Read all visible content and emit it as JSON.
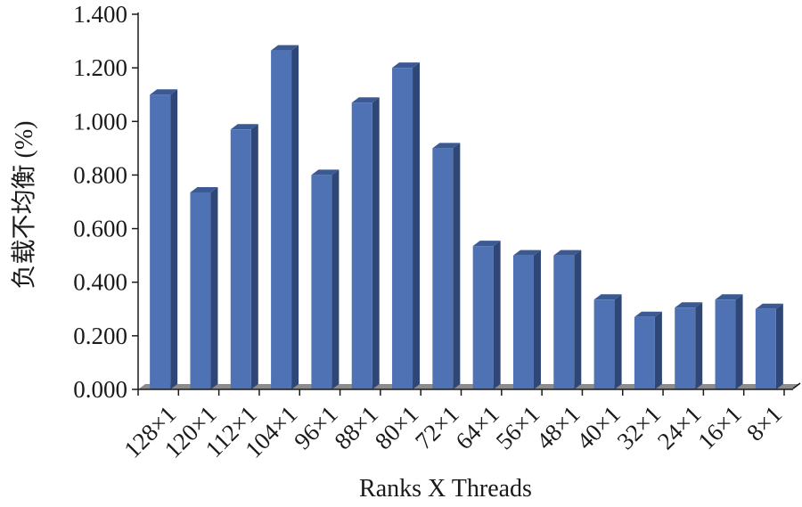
{
  "chart_data": {
    "type": "bar",
    "title": "",
    "xlabel": "Ranks X Threads",
    "ylabel": "负载不均衡 (%)",
    "categories": [
      "128×1",
      "120×1",
      "112×1",
      "104×1",
      "96×1",
      "88×1",
      "80×1",
      "72×1",
      "64×1",
      "56×1",
      "48×1",
      "40×1",
      "32×1",
      "24×1",
      "16×1",
      "8×1"
    ],
    "values": [
      1.1,
      0.735,
      0.97,
      1.265,
      0.8,
      1.07,
      1.2,
      0.9,
      0.535,
      0.5,
      0.5,
      0.335,
      0.27,
      0.305,
      0.335,
      0.3
    ],
    "ylim": [
      0,
      1.4
    ],
    "yticks": [
      "0.000",
      "0.200",
      "0.400",
      "0.600",
      "0.800",
      "1.000",
      "1.200",
      "1.400"
    ],
    "grid": false,
    "legend": "none",
    "colors": {
      "bar_front": "#4f72b4",
      "bar_side": "#2e4777",
      "bar_top": "#3b5a94",
      "floor": "#8c8c8c",
      "axis": "#1a1a1a"
    }
  }
}
